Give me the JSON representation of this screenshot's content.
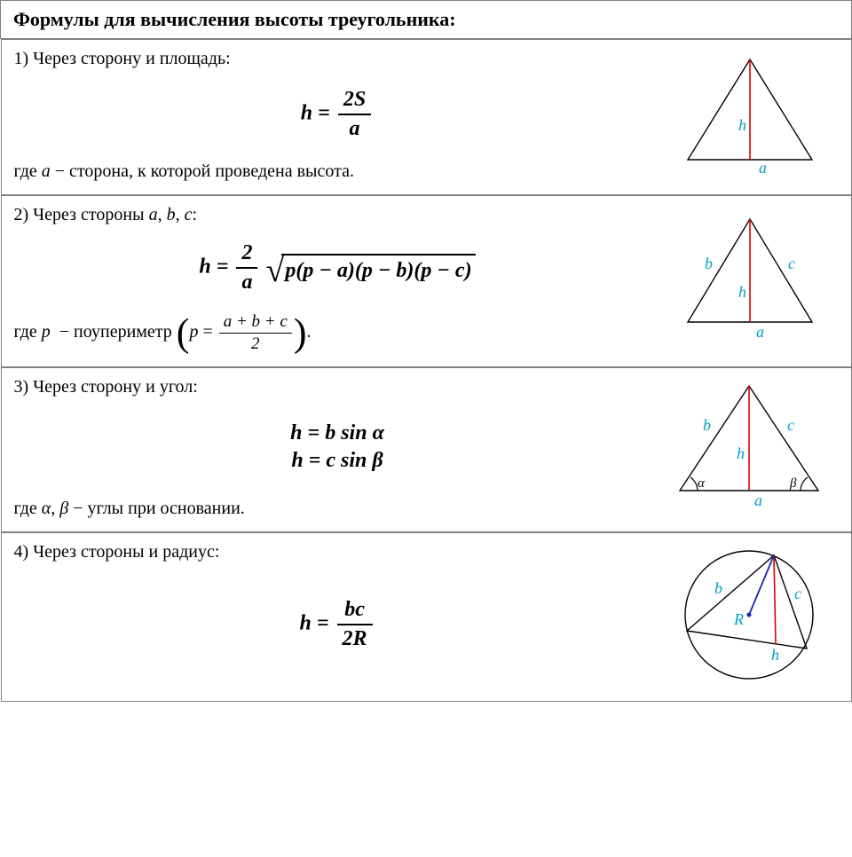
{
  "title": "Формулы для вычисления высоты треугольника:",
  "colors": {
    "border": "#808080",
    "text": "#000000",
    "label": "#00a0c8",
    "altitude": "#dd0000",
    "radius": "#2020c0",
    "triangle_stroke": "#000000",
    "background": "#ffffff"
  },
  "rows": [
    {
      "heading": "1) Через сторону и площадь:",
      "formula_html": "<span class=\"ital\">h</span> = <span class=\"frac\"><span class=\"num\">2<span class=\"ital\">S</span></span><span class=\"den ital\">a</span></span>",
      "note_html": "где <span class=\"ital\">a</span> − сторона, к которой проведена высота.",
      "diagram": "d1"
    },
    {
      "heading": "2) Через стороны a, b, c:",
      "heading_html": "2) Через стороны <span class=\"ital\">a</span>, <span class=\"ital\">b</span>, <span class=\"ital\">c</span>:",
      "formula_html": "<span class=\"ital\">h</span> = <span class=\"frac\"><span class=\"num\">2</span><span class=\"den ital\">a</span></span> <span class=\"sqrt-wrap\"><span class=\"radical\">√</span><span class=\"under-root\">p(p − a)(p − b)(p − c)</span></span>",
      "note_html": "где <span class=\"ital\">p</span> &nbsp;− поупериметр <span class=\"bigparen\">(</span><span class=\"ital\">p</span> = <span class=\"frac-sm\"><span class=\"num\">a + b + c</span><span class=\"den\">2</span></span><span class=\"bigparen\">)</span>.",
      "diagram": "d2"
    },
    {
      "heading": "3) Через сторону и угол:",
      "formula_html": "<div><span class=\"ital\">h</span> = <span class=\"ital\">b</span> sin <span class=\"ital\">α</span></div><div style=\"margin-top:4px\"><span class=\"ital\">h</span> = <span class=\"ital\">c</span> sin <span class=\"ital\">β</span></div>",
      "note_html": "где <span class=\"ital\">α</span>, <span class=\"ital\">β</span> − углы при основании.",
      "diagram": "d3"
    },
    {
      "heading": "4) Через стороны и радиус:",
      "formula_html": "<span class=\"ital\">h</span> = <span class=\"frac\"><span class=\"num ital\">bc</span><span class=\"den\">2<span class=\"ital\">R</span></span></span>",
      "note_html": "",
      "diagram": "d4"
    }
  ],
  "diagrams": {
    "d1": {
      "type": "triangle-altitude",
      "labels": {
        "h": "h",
        "a": "a"
      }
    },
    "d2": {
      "type": "triangle-altitude-sides",
      "labels": {
        "h": "h",
        "a": "a",
        "b": "b",
        "c": "c"
      }
    },
    "d3": {
      "type": "triangle-altitude-angles",
      "labels": {
        "h": "h",
        "a": "a",
        "b": "b",
        "c": "c",
        "alpha": "α",
        "beta": "β"
      }
    },
    "d4": {
      "type": "triangle-circumscribed",
      "labels": {
        "h": "h",
        "b": "b",
        "c": "c",
        "R": "R"
      }
    }
  },
  "svg_style": {
    "stroke_width": 1.4,
    "label_fontsize": 16,
    "label_font": "italic 16px Georgia"
  }
}
